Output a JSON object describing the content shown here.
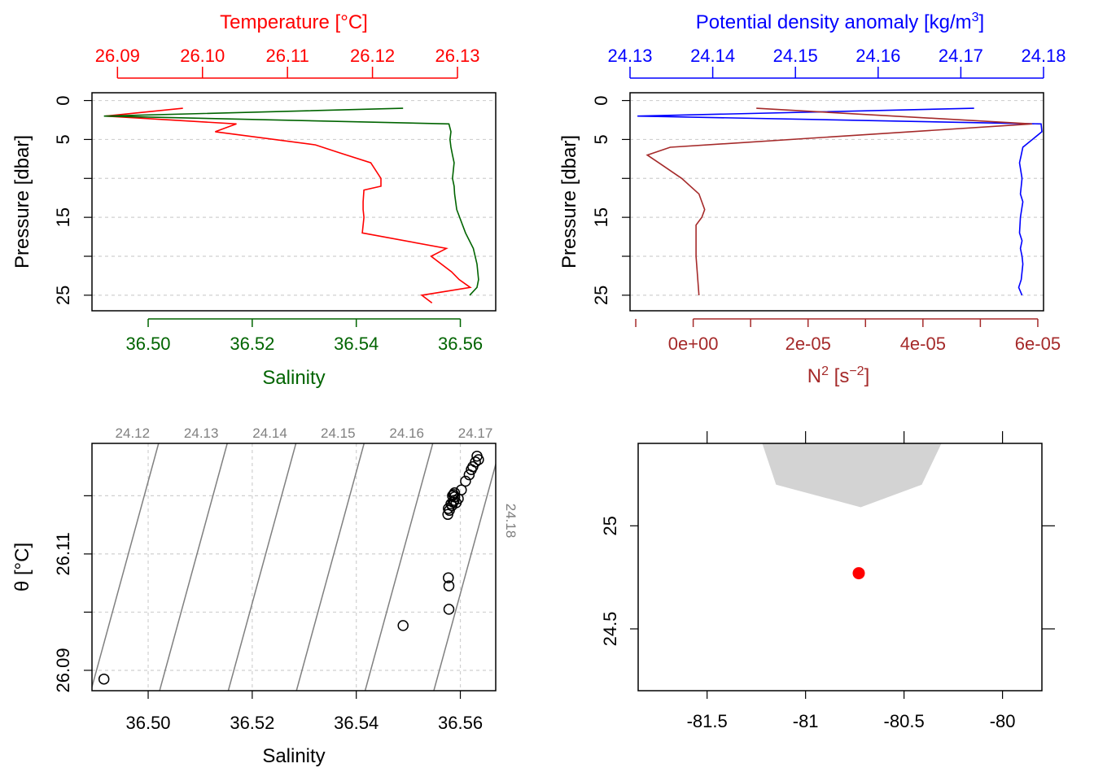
{
  "chart_data": [
    {
      "type": "line",
      "panel": "profile-temperature-salinity",
      "y_axis": {
        "label": "Pressure [dbar]",
        "ticks": [
          "0",
          "5",
          "10",
          "15",
          "20",
          "25"
        ],
        "lim": [
          27,
          -1
        ],
        "reversed": true
      },
      "top_axis": {
        "label": "Temperature [°C]",
        "color": "#ff0000",
        "lim": [
          26.087,
          26.1345
        ],
        "ticks": [
          "26.09",
          "26.10",
          "26.11",
          "26.12",
          "26.13"
        ]
      },
      "bottom_axis": {
        "label": "Salinity",
        "color": "#006400",
        "lim": [
          36.4892,
          36.5668
        ],
        "ticks": [
          "36.50",
          "36.52",
          "36.54",
          "36.56"
        ]
      },
      "grid": true,
      "series": [
        {
          "color": "#ff0000",
          "x": [
            26.0977,
            26.0886,
            26.104,
            26.1015,
            26.1133,
            26.1161,
            26.1198,
            26.121,
            26.121,
            26.119,
            26.1189,
            26.1189,
            26.119,
            26.1188,
            26.1287,
            26.1269,
            26.1293,
            26.1302,
            26.1315,
            26.1258,
            26.127
          ],
          "y": [
            1,
            2,
            3,
            4,
            5.7,
            6.7,
            8,
            10,
            11,
            11.5,
            13,
            14,
            15,
            17,
            19,
            20,
            22,
            23,
            24,
            25,
            26
          ]
        },
        {
          "color": "#006400",
          "x": [
            36.549,
            36.4915,
            36.5578,
            36.5582,
            36.558,
            36.5582,
            36.5585,
            36.5588,
            36.5585,
            36.5588,
            36.5589,
            36.5593,
            36.561,
            36.5625,
            36.5632,
            36.5635,
            36.5632,
            36.5618
          ],
          "y": [
            1,
            2,
            3,
            4,
            5,
            6,
            7,
            8,
            10,
            11,
            12,
            14,
            17,
            19,
            21,
            23,
            24,
            25
          ]
        }
      ]
    },
    {
      "type": "line",
      "panel": "profile-density-n2",
      "y_axis": {
        "label": "Pressure [dbar]",
        "ticks": [
          "0",
          "5",
          "10",
          "15",
          "20",
          "25"
        ],
        "lim": [
          27,
          -1
        ],
        "reversed": true
      },
      "top_axis": {
        "label": "Potential density anomaly [kg/m3]",
        "color": "#0000ff",
        "lim": [
          24.13,
          24.18
        ],
        "ticks": [
          "24.13",
          "24.14",
          "24.15",
          "24.16",
          "24.17",
          "24.18"
        ]
      },
      "bottom_axis": {
        "label": "N2 [s-2]",
        "color": "#a52a2a",
        "lim": [
          -1.1e-05,
          6.1e-05
        ],
        "ticks": [
          "0e+00",
          "2e-05",
          "4e-05",
          "6e-05"
        ]
      },
      "grid": true,
      "series": [
        {
          "color": "#0000ff",
          "x": [
            24.1716,
            24.1309,
            24.1797,
            24.1798,
            24.1775,
            24.1773,
            24.1771,
            24.1774,
            24.1772,
            24.1775,
            24.1772,
            24.1771,
            24.1774,
            24.1772,
            24.1774,
            24.1775,
            24.1773,
            24.177,
            24.1774
          ],
          "y": [
            1,
            2,
            3,
            4,
            6,
            7,
            8,
            10,
            12,
            13,
            15,
            17,
            18,
            19,
            20,
            21,
            23,
            24,
            25
          ]
        },
        {
          "color": "#a52a2a",
          "x": [
            1.1e-05,
            5.9e-05,
            -4e-06,
            -8e-06,
            -6e-06,
            -2e-06,
            1e-06,
            2e-06,
            1.5e-06,
            5e-07,
            5e-07,
            5e-07,
            1e-06
          ],
          "y": [
            1,
            3,
            6,
            7,
            8,
            10,
            12,
            14,
            15,
            16,
            18,
            20,
            25
          ]
        }
      ]
    },
    {
      "type": "scatter",
      "panel": "ts-diagram",
      "xlabel": "Salinity",
      "ylabel": "θ [°C]",
      "xlim": [
        36.4892,
        36.5668
      ],
      "ylim": [
        26.0865,
        26.129
      ],
      "x_ticks": [
        "36.50",
        "36.52",
        "36.54",
        "36.56"
      ],
      "y_ticks": [
        "26.09",
        "26.11"
      ],
      "grid": true,
      "points": {
        "x": [
          36.4915,
          36.549,
          36.5578,
          36.5578,
          36.5577,
          36.5576,
          36.5577,
          36.5579,
          36.5582,
          36.5584,
          36.5586,
          36.5588,
          36.5589,
          36.5585,
          36.5587,
          36.5589,
          36.5592,
          36.5596,
          36.5602,
          36.561,
          36.5617,
          36.5621,
          36.5624,
          36.5629,
          36.5632,
          36.5635
        ],
        "y": [
          26.0885,
          26.0977,
          26.1005,
          26.1045,
          26.1059,
          26.1168,
          26.1178,
          26.1175,
          26.1186,
          26.1183,
          26.1189,
          26.1192,
          26.1198,
          26.12,
          26.1202,
          26.1205,
          26.1188,
          26.1195,
          26.121,
          26.1225,
          26.1236,
          26.1245,
          26.125,
          26.1258,
          26.1268,
          26.1262
        ]
      },
      "isopycnals": {
        "color": "#808080",
        "labels": [
          "24.12",
          "24.13",
          "24.14",
          "24.15",
          "24.16",
          "24.17",
          "24.18"
        ],
        "salinity_at_bottom": [
          36.489,
          36.5022,
          36.5154,
          36.5285,
          36.5417,
          36.5549,
          36.568
        ],
        "salinity_at_top": [
          36.502,
          36.5152,
          36.5284,
          36.5415,
          36.5547,
          36.5679,
          36.581
        ]
      }
    },
    {
      "type": "map",
      "panel": "station-map",
      "xlim": [
        -81.85,
        -79.8
      ],
      "ylim": [
        24.2,
        25.4
      ],
      "x_ticks": [
        "-81.5",
        "-81",
        "-80.5",
        "-80"
      ],
      "y_ticks": [
        "25",
        "24.5"
      ],
      "land": {
        "color": "#d3d3d3",
        "lon": [
          -81.22,
          -81.15,
          -80.72,
          -80.41,
          -80.31
        ],
        "lat": [
          25.4,
          25.2,
          25.09,
          25.2,
          25.4
        ]
      },
      "station": {
        "lon": -80.73,
        "lat": 24.77,
        "color": "#ff0000"
      }
    }
  ],
  "labels": {
    "temperature_axis": "Temperature [°C]",
    "salinity_axis": "Salinity",
    "pressure_axis": "Pressure [dbar]",
    "density_axis": "Potential density anomaly [kg/m",
    "density_axis_sup": "3",
    "density_axis_close": "]",
    "n2_axis": "N",
    "n2_axis_sup": "2",
    "n2_axis_mid": " [s",
    "n2_axis_sup2": "−2",
    "n2_axis_close": "]",
    "theta_axis": "θ [°C]",
    "ts_salinity_axis": "Salinity"
  }
}
